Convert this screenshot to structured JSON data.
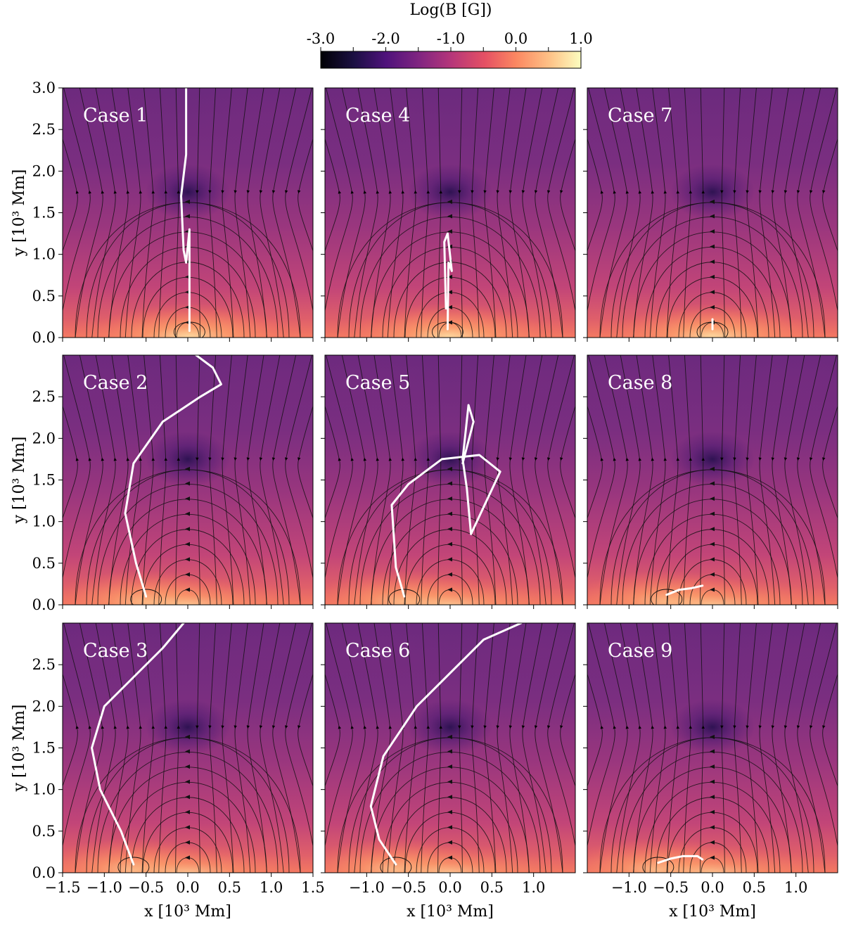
{
  "chart_data": {
    "type": "heatmap",
    "title": "",
    "colorbar": {
      "label": "Log(B [G])",
      "ticks": [
        "-3.0",
        "-2.0",
        "-1.0",
        "0.0",
        "1.0"
      ],
      "tick_values": [
        -3.0,
        -2.0,
        -1.0,
        0.0,
        1.0
      ],
      "range": [
        -3.0,
        1.0
      ],
      "colormap": "magma"
    },
    "xlabel": "x [10³ Mm]",
    "ylabel": "y [10³ Mm]",
    "xlim": [
      -1.5,
      1.5
    ],
    "ylim": [
      0.0,
      3.0
    ],
    "x_ticks_first_col": [
      "−1.5",
      "−1.0",
      "−0.5",
      "0.0",
      "0.5",
      "1.0",
      "1.5"
    ],
    "x_ticks_other_cols": [
      "−1.0",
      "−0.5",
      "0.0",
      "0.5",
      "1.0"
    ],
    "y_ticks_first_row": [
      "0.0",
      "0.5",
      "1.0",
      "1.5",
      "2.0",
      "2.5",
      "3.0"
    ],
    "y_ticks_other_rows": [
      "0.0",
      "0.5",
      "1.0",
      "1.5",
      "2.0",
      "2.5"
    ],
    "null_point": {
      "x": 0.0,
      "y": 1.75
    },
    "panels": [
      {
        "label": "Case 1",
        "row": 0,
        "col": 0,
        "trajectory": [
          [
            0.02,
            0.08
          ],
          [
            0.02,
            1.3
          ],
          [
            -0.02,
            0.9
          ],
          [
            -0.05,
            1.05
          ],
          [
            -0.08,
            1.7
          ],
          [
            -0.02,
            2.2
          ],
          [
            -0.02,
            3.0
          ]
        ]
      },
      {
        "label": "Case 4",
        "row": 0,
        "col": 1,
        "trajectory": [
          [
            -0.03,
            0.1
          ],
          [
            -0.02,
            0.9
          ],
          [
            0.02,
            0.8
          ],
          [
            -0.03,
            1.25
          ],
          [
            -0.07,
            1.15
          ],
          [
            -0.05,
            0.35
          ]
        ]
      },
      {
        "label": "Case 7",
        "row": 0,
        "col": 2,
        "trajectory": [
          [
            0.0,
            0.1
          ],
          [
            0.0,
            0.22
          ]
        ]
      },
      {
        "label": "Case 2",
        "row": 1,
        "col": 0,
        "trajectory": [
          [
            -0.5,
            0.1
          ],
          [
            -0.62,
            0.5
          ],
          [
            -0.75,
            1.1
          ],
          [
            -0.65,
            1.7
          ],
          [
            -0.3,
            2.2
          ],
          [
            0.15,
            2.5
          ],
          [
            0.4,
            2.65
          ],
          [
            0.3,
            2.85
          ],
          [
            0.1,
            3.0
          ]
        ]
      },
      {
        "label": "Case 5",
        "row": 1,
        "col": 1,
        "trajectory": [
          [
            -0.55,
            0.1
          ],
          [
            -0.65,
            0.45
          ],
          [
            -0.7,
            1.2
          ],
          [
            -0.5,
            1.45
          ],
          [
            -0.1,
            1.75
          ],
          [
            0.35,
            1.8
          ],
          [
            0.6,
            1.6
          ],
          [
            0.25,
            0.85
          ],
          [
            0.2,
            1.4
          ],
          [
            0.15,
            1.75
          ],
          [
            0.22,
            2.4
          ],
          [
            0.28,
            2.2
          ],
          [
            0.15,
            1.7
          ]
        ]
      },
      {
        "label": "Case 8",
        "row": 1,
        "col": 2,
        "trajectory": [
          [
            -0.55,
            0.12
          ],
          [
            -0.4,
            0.18
          ],
          [
            -0.25,
            0.2
          ],
          [
            -0.12,
            0.23
          ]
        ]
      },
      {
        "label": "Case 3",
        "row": 2,
        "col": 0,
        "trajectory": [
          [
            -0.65,
            0.1
          ],
          [
            -0.8,
            0.5
          ],
          [
            -1.05,
            1.0
          ],
          [
            -1.15,
            1.5
          ],
          [
            -1.0,
            2.0
          ],
          [
            -0.6,
            2.4
          ],
          [
            -0.3,
            2.7
          ],
          [
            -0.05,
            3.0
          ]
        ]
      },
      {
        "label": "Case 6",
        "row": 2,
        "col": 1,
        "trajectory": [
          [
            -0.65,
            0.1
          ],
          [
            -0.85,
            0.4
          ],
          [
            -0.95,
            0.8
          ],
          [
            -0.8,
            1.4
          ],
          [
            -0.4,
            2.0
          ],
          [
            0.1,
            2.5
          ],
          [
            0.4,
            2.8
          ],
          [
            0.85,
            3.0
          ]
        ]
      },
      {
        "label": "Case 9",
        "row": 2,
        "col": 2,
        "trajectory": [
          [
            -0.65,
            0.12
          ],
          [
            -0.5,
            0.17
          ],
          [
            -0.35,
            0.2
          ],
          [
            -0.18,
            0.2
          ],
          [
            -0.12,
            0.16
          ]
        ]
      }
    ]
  }
}
